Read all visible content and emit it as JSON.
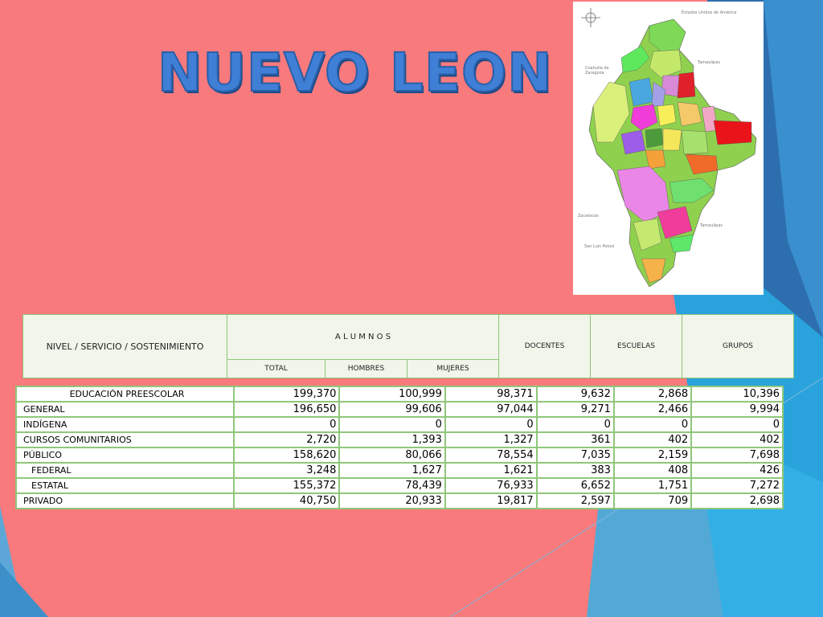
{
  "title": "NUEVO LEON",
  "map": {
    "labels": {
      "usa": "Estados Unidos de América",
      "coahuila": "Coahuila de Zaragoza",
      "tamaulipas_top": "Tamaulipas",
      "zacatecas": "Zacatecas",
      "tamaulipas_bottom": "Tamaulipas",
      "slp": "San Luis Potosí"
    }
  },
  "table_header": {
    "nivel": "NIVEL / SERVICIO / SOSTENIMIENTO",
    "alumnos": "A L U M N O S",
    "total": "TOTAL",
    "hombres": "HOMBRES",
    "mujeres": "MUJERES",
    "docentes": "DOCENTES",
    "escuelas": "ESCUELAS",
    "grupos": "GRUPOS"
  },
  "rows": [
    {
      "label": "EDUCACIÓN PREESCOLAR",
      "total": "199,370",
      "hombres": "100,999",
      "mujeres": "98,371",
      "docentes": "9,632",
      "escuelas": "2,868",
      "grupos": "10,396"
    },
    {
      "label": "GENERAL",
      "total": "196,650",
      "hombres": "99,606",
      "mujeres": "97,044",
      "docentes": "9,271",
      "escuelas": "2,466",
      "grupos": "9,994"
    },
    {
      "label": "INDÍGENA",
      "total": "0",
      "hombres": "0",
      "mujeres": "0",
      "docentes": "0",
      "escuelas": "0",
      "grupos": "0"
    },
    {
      "label": "CURSOS COMUNITARIOS",
      "total": "2,720",
      "hombres": "1,393",
      "mujeres": "1,327",
      "docentes": "361",
      "escuelas": "402",
      "grupos": "402"
    },
    {
      "label": "PÚBLICO",
      "total": "158,620",
      "hombres": "80,066",
      "mujeres": "78,554",
      "docentes": "7,035",
      "escuelas": "2,159",
      "grupos": "7,698"
    },
    {
      "label": "FEDERAL",
      "total": "3,248",
      "hombres": "1,627",
      "mujeres": "1,621",
      "docentes": "383",
      "escuelas": "408",
      "grupos": "426"
    },
    {
      "label": "ESTATAL",
      "total": "155,372",
      "hombres": "78,439",
      "mujeres": "76,933",
      "docentes": "6,652",
      "escuelas": "1,751",
      "grupos": "7,272"
    },
    {
      "label": "PRIVADO",
      "total": "40,750",
      "hombres": "20,933",
      "mujeres": "19,817",
      "docentes": "2,597",
      "escuelas": "709",
      "grupos": "2,698"
    }
  ],
  "colors": {
    "background": "#f87a7c",
    "title": "#3f7fd6",
    "table_border": "#8fc77a",
    "header_fill": "#f1f5ea"
  }
}
